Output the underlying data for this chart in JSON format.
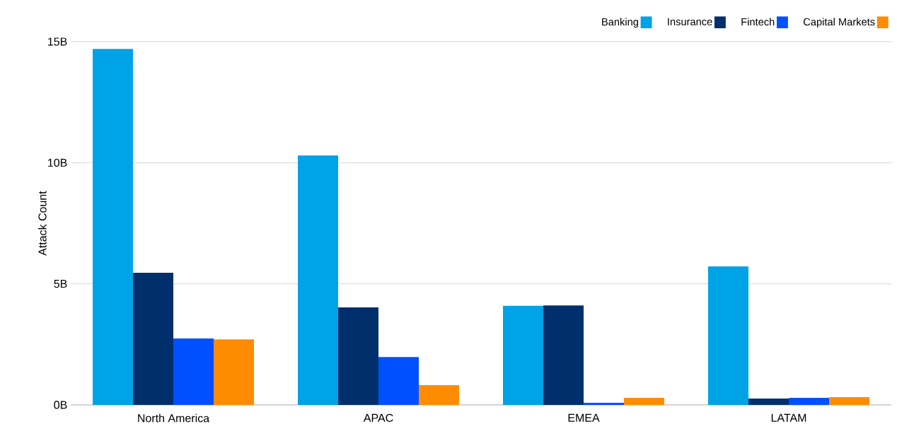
{
  "chart_data": {
    "type": "bar",
    "ylabel": "Attack Count",
    "categories": [
      "North America",
      "APAC",
      "EMEA",
      "LATAM"
    ],
    "series": [
      {
        "name": "Banking",
        "color": "#00a3e6",
        "values": [
          14.7,
          10.3,
          4.09,
          5.72
        ]
      },
      {
        "name": "Insurance",
        "color": "#002f6c",
        "values": [
          5.46,
          4.03,
          4.11,
          0.26
        ]
      },
      {
        "name": "Fintech",
        "color": "#0050ff",
        "values": [
          2.74,
          1.98,
          0.09,
          0.29
        ]
      },
      {
        "name": "Capital Markets",
        "color": "#ff8c00",
        "values": [
          2.71,
          0.82,
          0.29,
          0.32
        ]
      }
    ],
    "ylim": [
      0,
      15
    ],
    "yticks": [
      {
        "value": 0,
        "label": "0B"
      },
      {
        "value": 5,
        "label": "5B"
      },
      {
        "value": 10,
        "label": "10B"
      },
      {
        "value": 15,
        "label": "15B"
      }
    ],
    "grid": "y",
    "legend": "top right"
  }
}
